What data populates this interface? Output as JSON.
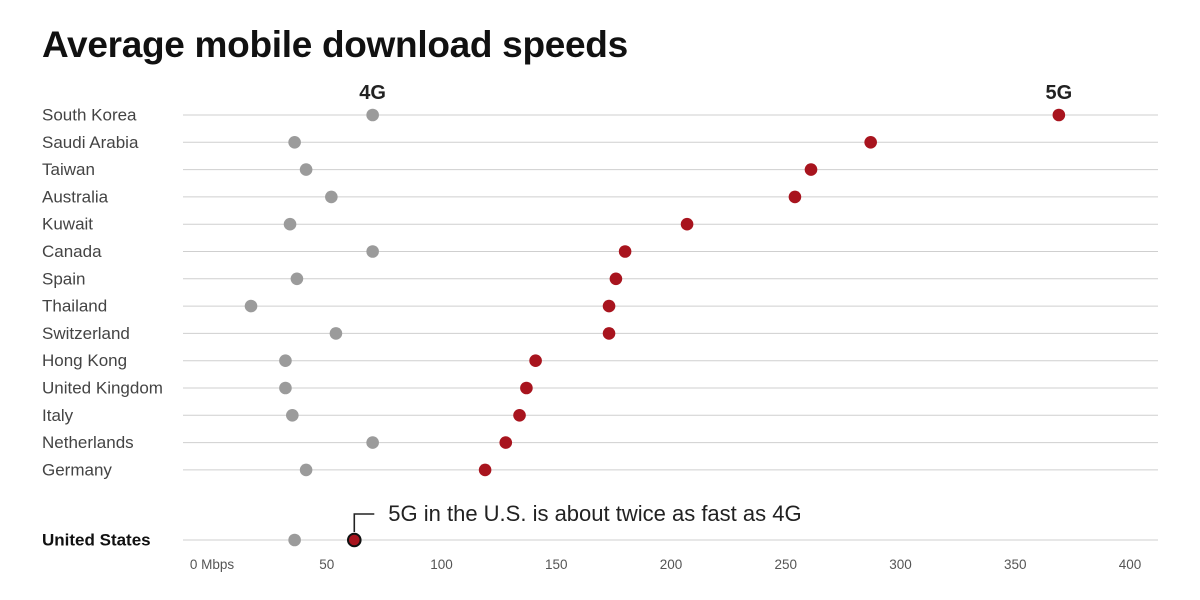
{
  "chart_data": {
    "type": "scatter",
    "title": "Average mobile download speeds",
    "x_unit": "Mbps",
    "xlim": [
      0,
      420
    ],
    "x_ticks": [
      0,
      50,
      100,
      150,
      200,
      250,
      300,
      350,
      400
    ],
    "x_tick_labels": [
      "0 Mbps",
      "50",
      "100",
      "150",
      "200",
      "250",
      "300",
      "350",
      "400"
    ],
    "categories": [
      "South Korea",
      "Saudi Arabia",
      "Taiwan",
      "Australia",
      "Kuwait",
      "Canada",
      "Spain",
      "Thailand",
      "Switzerland",
      "Hong Kong",
      "United Kingdom",
      "Italy",
      "Netherlands",
      "Germany",
      "United States"
    ],
    "highlight_category": "United States",
    "series": [
      {
        "name": "4G",
        "color": "#9b9b9b",
        "values": [
          70,
          36,
          41,
          52,
          34,
          70,
          37,
          17,
          54,
          32,
          32,
          35,
          70,
          41,
          36
        ]
      },
      {
        "name": "5G",
        "color": "#a8141e",
        "values": [
          369,
          287,
          261,
          254,
          207,
          180,
          176,
          173,
          173,
          141,
          137,
          134,
          128,
          119,
          62
        ]
      }
    ],
    "annotation": "5G in the U.S. is about twice as fast as 4G",
    "grid": true,
    "legend": "inline labels above first row"
  }
}
